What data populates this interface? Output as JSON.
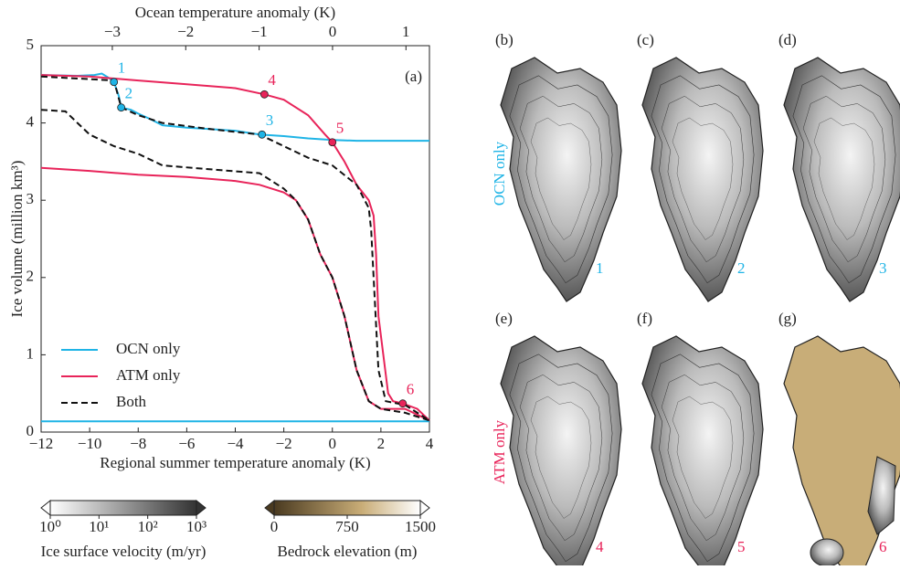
{
  "chart_data": {
    "type": "line",
    "panel_label": "(a)",
    "x_label": "Regional summer temperature anomaly (K)",
    "y_label": "Ice volume (million km³)",
    "x2_label": "Ocean temperature anomaly (K)",
    "xlim": [
      -12,
      4
    ],
    "xticks": [
      {
        "value": -12,
        "label": "−12"
      },
      {
        "value": -10,
        "label": "−10"
      },
      {
        "value": -8,
        "label": "−8"
      },
      {
        "value": -6,
        "label": "−6"
      },
      {
        "value": -4,
        "label": "−4"
      },
      {
        "value": -2,
        "label": "−2"
      },
      0,
      2,
      4
    ],
    "x2lim": [
      -3.97,
      1.32
    ],
    "x2ticks": [
      {
        "value": -3,
        "label": "−3"
      },
      {
        "value": -2,
        "label": "−2"
      },
      {
        "value": -1,
        "label": "−1"
      },
      0,
      1
    ],
    "ylim": [
      0,
      5
    ],
    "yticks": [
      0,
      1,
      2,
      3,
      4,
      5
    ],
    "legend": "lower left",
    "series": [
      {
        "name": "OCN only",
        "color": "#1fb4e6",
        "dash": false,
        "x": [
          -12,
          -10.5,
          -9.8,
          -9.5,
          -9.2,
          -9.0,
          -8.8,
          -8.7,
          -8.3,
          -8,
          -7.5,
          -7,
          -6,
          -5,
          -4,
          -3,
          -2,
          -1,
          0,
          1,
          2,
          3,
          4,
          null,
          -12,
          4
        ],
        "values": [
          4.62,
          4.61,
          4.62,
          4.64,
          4.58,
          4.53,
          4.35,
          4.2,
          4.17,
          4.12,
          4.05,
          3.97,
          3.94,
          3.92,
          3.9,
          3.85,
          3.83,
          3.8,
          3.78,
          3.77,
          3.77,
          3.77,
          3.77,
          null,
          0.14,
          0.14
        ]
      },
      {
        "name": "ATM only",
        "color": "#e8245a",
        "dash": false,
        "x": [
          -12,
          -10,
          -8,
          -6,
          -4,
          -2.8,
          -2,
          -1,
          -0.3,
          0,
          0.5,
          1,
          1.5,
          1.7,
          1.8,
          1.9,
          2.1,
          2.3,
          2.5,
          2.9,
          3.5,
          4,
          null,
          -12,
          -10,
          -8,
          -6,
          -4,
          -3,
          -2,
          -1.5,
          -1,
          -0.5,
          0,
          0.5,
          1,
          1.5,
          2,
          3,
          4
        ],
        "values": [
          4.62,
          4.6,
          4.55,
          4.5,
          4.45,
          4.37,
          4.3,
          4.1,
          3.85,
          3.75,
          3.5,
          3.2,
          3.0,
          2.8,
          2.3,
          1.5,
          1.0,
          0.5,
          0.4,
          0.37,
          0.3,
          0.15,
          null,
          3.42,
          3.38,
          3.33,
          3.3,
          3.25,
          3.2,
          3.1,
          3.0,
          2.75,
          2.3,
          2.0,
          1.5,
          0.8,
          0.4,
          0.3,
          0.3,
          0.15
        ]
      },
      {
        "name": "Both",
        "color": "#111111",
        "dash": true,
        "x": [
          -12,
          -9,
          -8.7,
          -8,
          -7,
          -5,
          -3,
          -2,
          -1,
          0,
          1,
          1.5,
          1.6,
          1.7,
          1.9,
          2.2,
          3,
          4,
          null,
          -12,
          -11,
          -10.5,
          -10,
          -9,
          -8,
          -7,
          -5,
          -3,
          -2,
          -1.5,
          -1,
          -0.5,
          0,
          0.5,
          1,
          1.5,
          2,
          3,
          4
        ],
        "values": [
          4.6,
          4.55,
          4.2,
          4.1,
          4.0,
          3.92,
          3.85,
          3.7,
          3.55,
          3.45,
          3.2,
          2.9,
          2.6,
          2.0,
          0.8,
          0.4,
          0.35,
          0.15,
          null,
          4.17,
          4.15,
          4.0,
          3.85,
          3.7,
          3.6,
          3.45,
          3.4,
          3.35,
          3.15,
          3.0,
          2.75,
          2.3,
          2.0,
          1.5,
          0.8,
          0.4,
          0.3,
          0.25,
          0.15
        ]
      }
    ],
    "annotations": [
      {
        "label": "1",
        "x": -9.0,
        "y": 4.53,
        "color": "#1fb4e6"
      },
      {
        "label": "2",
        "x": -8.7,
        "y": 4.2,
        "color": "#1fb4e6"
      },
      {
        "label": "3",
        "x": -2.9,
        "y": 3.85,
        "color": "#1fb4e6"
      },
      {
        "label": "4",
        "x": -2.8,
        "y": 4.37,
        "color": "#e8245a"
      },
      {
        "label": "5",
        "x": 0,
        "y": 3.75,
        "color": "#e8245a"
      },
      {
        "label": "6",
        "x": 2.9,
        "y": 0.37,
        "color": "#e8245a"
      }
    ]
  },
  "colorbars": [
    {
      "label": "Ice surface velocity (m/yr)",
      "range": [
        0,
        3
      ],
      "ticks": [
        {
          "value": 0,
          "label": "10⁰"
        },
        {
          "value": 1,
          "label": "10¹"
        },
        {
          "value": 2,
          "label": "10²"
        },
        {
          "value": 3,
          "label": "10³"
        }
      ]
    },
    {
      "label": "Bedrock elevation (m)",
      "range": [
        0,
        1500
      ],
      "ticks": [
        0,
        750,
        1500
      ]
    }
  ],
  "maps": {
    "row_labels": [
      "OCN only",
      "ATM only"
    ],
    "panels": [
      {
        "label": "(b)",
        "number": "1"
      },
      {
        "label": "(c)",
        "number": "2"
      },
      {
        "label": "(d)",
        "number": "3"
      },
      {
        "label": "(e)",
        "number": "4"
      },
      {
        "label": "(f)",
        "number": "5"
      },
      {
        "label": "(g)",
        "number": "6"
      }
    ]
  }
}
